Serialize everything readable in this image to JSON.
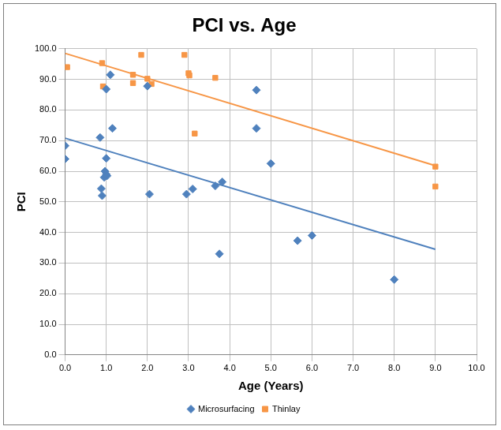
{
  "chart_data": {
    "type": "scatter",
    "title": "PCI vs. Age",
    "x_label": "Age (Years)",
    "y_label": "PCI",
    "xlim": [
      0,
      10
    ],
    "xticks": [
      {
        "value": 0,
        "label": "0.0"
      },
      {
        "value": 1,
        "label": "1.0"
      },
      {
        "value": 2,
        "label": "2.0"
      },
      {
        "value": 3,
        "label": "3.0"
      },
      {
        "value": 4,
        "label": "4.0"
      },
      {
        "value": 5,
        "label": "5.0"
      },
      {
        "value": 6,
        "label": "6.0"
      },
      {
        "value": 7,
        "label": "7.0"
      },
      {
        "value": 8,
        "label": "8.0"
      },
      {
        "value": 9,
        "label": "9.0"
      },
      {
        "value": 10,
        "label": "10.0"
      }
    ],
    "ylim": [
      0,
      100
    ],
    "yticks": [
      {
        "value": 0,
        "label": "0.0"
      },
      {
        "value": 10,
        "label": "10.0"
      },
      {
        "value": 20,
        "label": "20.0"
      },
      {
        "value": 30,
        "label": "30.0"
      },
      {
        "value": 40,
        "label": "40.0"
      },
      {
        "value": 50,
        "label": "50.0"
      },
      {
        "value": 60,
        "label": "60.0"
      },
      {
        "value": 70,
        "label": "70.0"
      },
      {
        "value": 80,
        "label": "80.0"
      },
      {
        "value": 90,
        "label": "90.0"
      },
      {
        "value": 100,
        "label": "100.0"
      }
    ],
    "grid": true,
    "legend": "bottom",
    "series": [
      {
        "name": "Microsurfacing",
        "color": "#4f81bd",
        "marker": "diamond",
        "x": [
          0.0,
          0.0,
          0.85,
          0.88,
          0.9,
          0.95,
          0.97,
          1.0,
          1.02,
          1.0,
          1.0,
          1.1,
          1.15,
          2.0,
          2.05,
          2.95,
          3.1,
          3.65,
          3.75,
          3.82,
          4.65,
          4.65,
          5.0,
          5.65,
          6.0,
          8.0
        ],
        "values": [
          68.3,
          64.0,
          71.0,
          54.3,
          52.0,
          58.0,
          60.0,
          59.0,
          58.5,
          86.8,
          64.2,
          91.5,
          74.0,
          87.8,
          52.5,
          52.5,
          54.2,
          55.2,
          33.0,
          56.5,
          86.5,
          74.0,
          62.5,
          37.3,
          39.0,
          24.6
        ],
        "trendline": {
          "x": [
            0,
            9
          ],
          "values": [
            70.8,
            34.5
          ]
        }
      },
      {
        "name": "Thinlay",
        "color": "#f79646",
        "marker": "square",
        "x": [
          0.05,
          0.9,
          0.92,
          1.65,
          1.65,
          1.85,
          2.0,
          2.1,
          2.9,
          3.0,
          3.02,
          3.15,
          3.65,
          9.0,
          9.0
        ],
        "values": [
          94.0,
          95.3,
          87.7,
          91.5,
          88.8,
          98.0,
          90.2,
          88.5,
          98.0,
          92.0,
          91.3,
          72.3,
          90.5,
          61.5,
          55.0
        ],
        "trendline": {
          "x": [
            0,
            9
          ],
          "values": [
            98.5,
            61.8
          ]
        }
      }
    ]
  }
}
